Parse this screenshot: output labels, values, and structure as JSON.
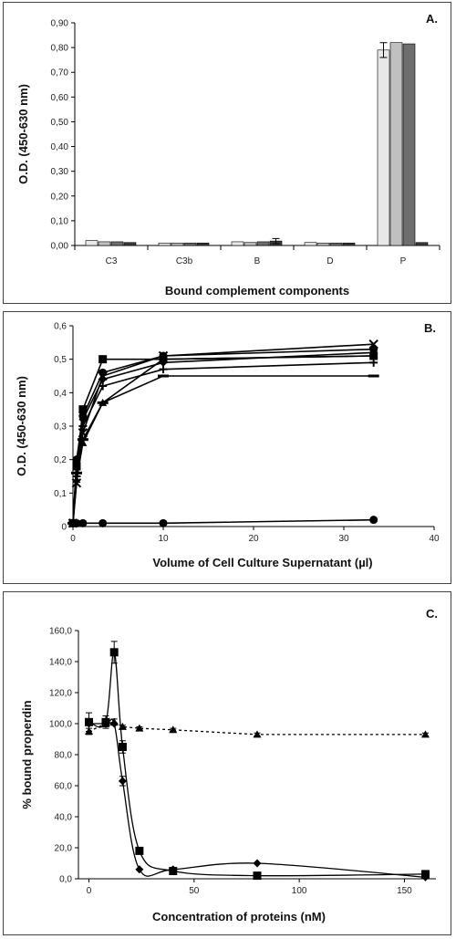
{
  "chart_data": [
    {
      "id": "A",
      "type": "bar",
      "panel_label": "A.",
      "ylabel": "O.D. (450-630 nm)",
      "xlabel": "Bound complement components",
      "categories": [
        "C3",
        "C3b",
        "B",
        "D",
        "P"
      ],
      "ylim": [
        0,
        0.9
      ],
      "yticks": [
        "0,00",
        "0,10",
        "0,20",
        "0,30",
        "0,40",
        "0,50",
        "0,60",
        "0,70",
        "0,80",
        "0,90"
      ],
      "series": [
        {
          "values": [
            0.02,
            0.01,
            0.015,
            0.012,
            0.79
          ],
          "errors": [
            0,
            0,
            0,
            0,
            0.03
          ],
          "fill": "#e8e8e8"
        },
        {
          "values": [
            0.015,
            0.01,
            0.012,
            0.01,
            0.82
          ],
          "errors": [
            0,
            0,
            0,
            0,
            0
          ],
          "fill": "#c0c0c0"
        },
        {
          "values": [
            0.015,
            0.01,
            0.015,
            0.01,
            0.815
          ],
          "errors": [
            0,
            0,
            0,
            0,
            0
          ],
          "fill": "#6e6e6e"
        },
        {
          "values": [
            0.012,
            0.01,
            0.018,
            0.01,
            0.012
          ],
          "errors": [
            0,
            0,
            0.01,
            0,
            0
          ],
          "fill": "#3a3a3a"
        }
      ]
    },
    {
      "id": "B",
      "type": "line",
      "panel_label": "B.",
      "ylabel": "O.D. (450-630 nm)",
      "xlabel": "Volume of Cell Culture Supernatant (µl)",
      "xlim": [
        0,
        40
      ],
      "ylim": [
        0,
        0.6
      ],
      "xticks": [
        "0",
        "10",
        "20",
        "30",
        "40"
      ],
      "yticks": [
        "0",
        "0,1",
        "0,2",
        "0,3",
        "0,4",
        "0,5",
        "0,6"
      ],
      "x": [
        0,
        0.4,
        1.1,
        3.3,
        10,
        33.3
      ],
      "series": [
        {
          "values": [
            0.01,
            0.18,
            0.35,
            0.5,
            0.5,
            0.51
          ],
          "marker": "square"
        },
        {
          "values": [
            0.01,
            0.2,
            0.33,
            0.46,
            0.51,
            0.53
          ],
          "marker": "circle"
        },
        {
          "values": [
            0.01,
            0.13,
            0.28,
            0.45,
            0.51,
            0.545
          ],
          "marker": "x"
        },
        {
          "values": [
            0.01,
            0.15,
            0.3,
            0.42,
            0.47,
            0.49
          ],
          "marker": "plus"
        },
        {
          "values": [
            0.01,
            0.16,
            0.26,
            0.37,
            0.45,
            0.45
          ],
          "marker": "dash"
        },
        {
          "values": [
            0.01,
            0.19,
            0.32,
            0.44,
            0.49,
            0.52
          ],
          "marker": "diamond"
        },
        {
          "values": [
            0.01,
            0.14,
            0.25,
            0.37,
            0.5,
            0.51
          ],
          "marker": "triangle"
        },
        {
          "values": [
            0.01,
            0.01,
            0.01,
            0.01,
            0.01,
            0.02
          ],
          "marker": "circle"
        }
      ]
    },
    {
      "id": "C",
      "type": "line",
      "panel_label": "C.",
      "ylabel": "% bound properdin",
      "xlabel": "Concentration of  proteins (nM)",
      "xlim": [
        -5,
        165
      ],
      "ylim": [
        0,
        160
      ],
      "xticks": [
        "0",
        "50",
        "100",
        "150"
      ],
      "xtick_values": [
        0,
        50,
        100,
        150
      ],
      "yticks": [
        "0,0",
        "20,0",
        "40,0",
        "60,0",
        "80,0",
        "100,0",
        "120,0",
        "140,0",
        "160,0"
      ],
      "series": [
        {
          "marker": "square",
          "dashed": false,
          "x": [
            0,
            8,
            12,
            16,
            24,
            40,
            80,
            160
          ],
          "values": [
            101,
            101,
            146,
            85,
            18,
            5,
            2,
            3
          ],
          "errors": [
            6,
            4,
            7,
            4,
            2,
            2,
            1,
            1
          ]
        },
        {
          "marker": "diamond",
          "dashed": false,
          "x": [
            0,
            8,
            12,
            16,
            24,
            40,
            80,
            160
          ],
          "values": [
            100,
            100,
            100,
            63,
            6,
            6,
            10,
            1
          ],
          "errors": [
            0,
            0,
            0,
            3,
            0,
            0,
            0,
            0
          ]
        },
        {
          "marker": "triangle",
          "dashed": true,
          "x": [
            0,
            8,
            12,
            16,
            24,
            40,
            80,
            160
          ],
          "values": [
            95,
            100,
            101,
            98,
            97,
            96,
            93,
            93
          ],
          "errors": [
            2,
            2,
            2,
            1,
            1,
            1,
            1,
            1
          ]
        }
      ]
    }
  ]
}
